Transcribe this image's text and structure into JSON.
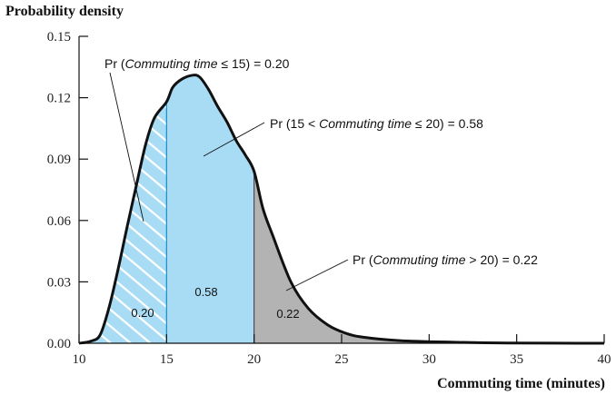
{
  "chart_data": {
    "type": "area",
    "ylabel": "Probability density",
    "xlabel": "Commuting time (minutes)",
    "xlim": [
      10,
      40
    ],
    "ylim": [
      0,
      0.15
    ],
    "xticks": [
      "10",
      "15",
      "20",
      "25",
      "30",
      "35",
      "40"
    ],
    "xtick_values": [
      10,
      15,
      20,
      25,
      30,
      35,
      40
    ],
    "yticks": [
      "0.00",
      "0.03",
      "0.06",
      "0.09",
      "0.12",
      "0.15"
    ],
    "ytick_values": [
      0,
      0.03,
      0.06,
      0.09,
      0.12,
      0.15
    ],
    "curve": [
      [
        10,
        0
      ],
      [
        10.67,
        0.001
      ],
      [
        11.2,
        0.004
      ],
      [
        11.7,
        0.017
      ],
      [
        12.2,
        0.035
      ],
      [
        12.75,
        0.057
      ],
      [
        13.27,
        0.077
      ],
      [
        13.8,
        0.097
      ],
      [
        14.3,
        0.11
      ],
      [
        15,
        0.118
      ],
      [
        15.35,
        0.125
      ],
      [
        15.86,
        0.129
      ],
      [
        16.5,
        0.131
      ],
      [
        16.9,
        0.13
      ],
      [
        17.4,
        0.124
      ],
      [
        17.9,
        0.116
      ],
      [
        18.46,
        0.108
      ],
      [
        18.98,
        0.099
      ],
      [
        19.5,
        0.092
      ],
      [
        20,
        0.084
      ],
      [
        20.5,
        0.066
      ],
      [
        21.05,
        0.053
      ],
      [
        22.1,
        0.03
      ],
      [
        23.1,
        0.017
      ],
      [
        24.2,
        0.009
      ],
      [
        25.2,
        0.005
      ],
      [
        26.2,
        0.003
      ],
      [
        28.3,
        0.0013
      ],
      [
        31.4,
        0.0005
      ],
      [
        34.5,
        0.0001
      ],
      [
        40,
        0
      ]
    ],
    "regions": [
      {
        "from": 10,
        "to": 15,
        "prob_label": "0.20",
        "annotation_pre": "Pr (",
        "annotation_it": "Commuting time",
        "annotation_post": " ≤  15) = 0.20",
        "fill": "#a8dcf5",
        "hatch": true
      },
      {
        "from": 15,
        "to": 20,
        "prob_label": "0.58",
        "annotation_pre": "Pr (15 < ",
        "annotation_it": "Commuting time",
        "annotation_post": " ≤  20) = 0.58",
        "fill": "#a8dcf5",
        "hatch": false
      },
      {
        "from": 20,
        "to": 40,
        "prob_label": "0.22",
        "annotation_pre": "Pr (",
        "annotation_it": "Commuting time",
        "annotation_post": " > 20) = 0.22",
        "fill": "#b3b3b3",
        "hatch": false
      }
    ]
  }
}
